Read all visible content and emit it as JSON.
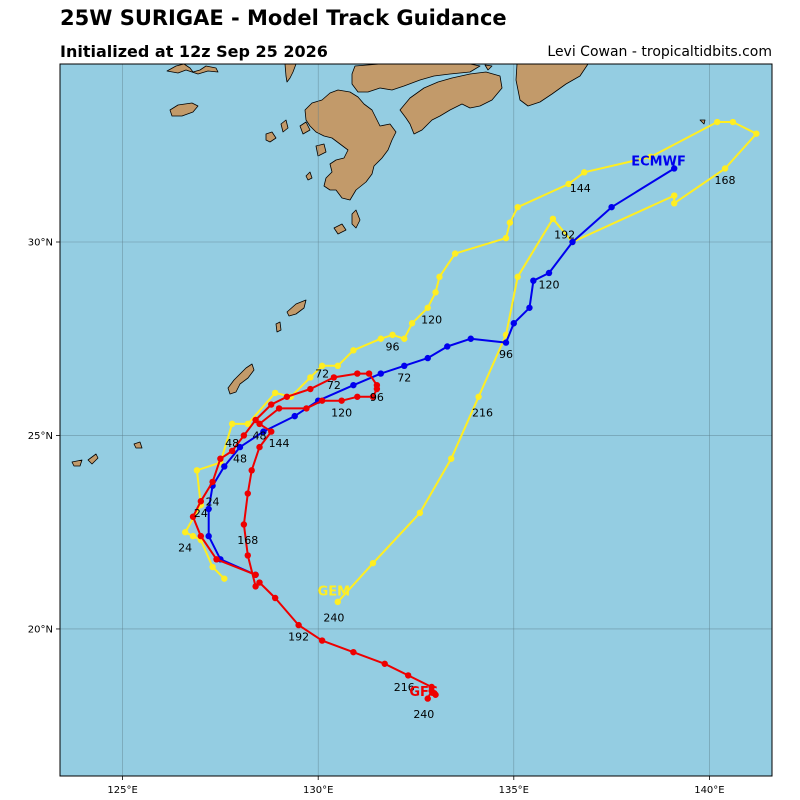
{
  "header": {
    "title": "25W SURIGAE - Model Track Guidance",
    "subtitle": "Initialized at 12z Sep 25 2026",
    "credit": "Levi Cowan - tropicaltidbits.com"
  },
  "colors": {
    "ocean": "#94cde2",
    "land": "#c29a6a",
    "grid": "#5d7f8c",
    "ecmwf": "#0000ee",
    "gfs": "#ee0000",
    "gem": "#ffee22"
  },
  "axes": {
    "lon_ticks": [
      {
        "value": 125,
        "label": "125°E"
      },
      {
        "value": 130,
        "label": "130°E"
      },
      {
        "value": 135,
        "label": "135°E"
      },
      {
        "value": 140,
        "label": "140°E"
      }
    ],
    "lat_ticks": [
      {
        "value": 20,
        "label": "20°N"
      },
      {
        "value": 25,
        "label": "25°N"
      },
      {
        "value": 30,
        "label": "30°N"
      }
    ],
    "lon_range": [
      123.4,
      141.6
    ],
    "lat_range": [
      16.2,
      34.6
    ],
    "grid": true
  },
  "chart_data": {
    "type": "map-tracks",
    "series": [
      {
        "name": "GFS",
        "color_key": "gfs",
        "points": [
          [
            132.8,
            18.2
          ],
          [
            132.9,
            18.4
          ],
          [
            133.0,
            18.3
          ],
          [
            132.9,
            18.5
          ],
          [
            132.3,
            18.8
          ],
          [
            131.7,
            19.1
          ],
          [
            130.9,
            19.4
          ],
          [
            130.1,
            19.7
          ],
          [
            129.5,
            20.1
          ],
          [
            128.9,
            20.8
          ],
          [
            128.5,
            21.2
          ],
          [
            128.4,
            21.1
          ],
          [
            128.2,
            21.9
          ],
          [
            128.1,
            22.7
          ],
          [
            128.2,
            23.5
          ],
          [
            128.3,
            24.1
          ],
          [
            128.5,
            24.7
          ],
          [
            128.8,
            25.1
          ],
          [
            128.5,
            25.3
          ],
          [
            129.0,
            25.7
          ],
          [
            129.7,
            25.7
          ],
          [
            130.1,
            25.9
          ],
          [
            130.6,
            25.9
          ],
          [
            131.0,
            26.0
          ],
          [
            131.4,
            26.0
          ],
          [
            131.5,
            26.2
          ],
          [
            131.5,
            26.3
          ],
          [
            131.3,
            26.6
          ],
          [
            131.0,
            26.6
          ],
          [
            130.4,
            26.5
          ],
          [
            129.8,
            26.2
          ],
          [
            129.2,
            26.0
          ],
          [
            128.8,
            25.8
          ],
          [
            128.4,
            25.4
          ],
          [
            128.1,
            25.0
          ],
          [
            127.8,
            24.6
          ],
          [
            127.5,
            24.4
          ],
          [
            127.3,
            23.8
          ],
          [
            127.0,
            23.3
          ],
          [
            126.8,
            22.9
          ],
          [
            127.0,
            22.4
          ],
          [
            127.4,
            21.8
          ],
          [
            128.4,
            21.4
          ]
        ],
        "labels": [
          {
            "text": "240",
            "lon": 132.7,
            "lat": 17.8
          },
          {
            "text": "216",
            "lon": 132.2,
            "lat": 18.5
          },
          {
            "text": "192",
            "lon": 129.5,
            "lat": 19.8
          },
          {
            "text": "168",
            "lon": 128.2,
            "lat": 22.3
          },
          {
            "text": "144",
            "lon": 129.0,
            "lat": 24.8
          },
          {
            "text": "120",
            "lon": 130.6,
            "lat": 25.6
          },
          {
            "text": "96",
            "lon": 131.5,
            "lat": 26.0
          },
          {
            "text": "72",
            "lon": 130.4,
            "lat": 26.3
          },
          {
            "text": "48",
            "lon": 128.5,
            "lat": 25.0
          },
          {
            "text": "24",
            "lon": 127.0,
            "lat": 23.0
          }
        ],
        "name_pos": {
          "lon": 132.7,
          "lat": 18.4
        }
      },
      {
        "name": "ECMWF",
        "color_key": "ecmwf",
        "points": [
          [
            128.4,
            21.4
          ],
          [
            127.5,
            21.8
          ],
          [
            127.2,
            22.4
          ],
          [
            127.2,
            23.1
          ],
          [
            127.3,
            23.7
          ],
          [
            127.6,
            24.2
          ],
          [
            128.0,
            24.7
          ],
          [
            128.6,
            25.1
          ],
          [
            129.4,
            25.5
          ],
          [
            130.0,
            25.9
          ],
          [
            130.9,
            26.3
          ],
          [
            131.6,
            26.6
          ],
          [
            132.2,
            26.8
          ],
          [
            132.8,
            27.0
          ],
          [
            133.3,
            27.3
          ],
          [
            133.9,
            27.5
          ],
          [
            134.8,
            27.4
          ],
          [
            135.0,
            27.9
          ],
          [
            135.4,
            28.3
          ],
          [
            135.5,
            29.0
          ],
          [
            135.9,
            29.2
          ],
          [
            136.5,
            30.0
          ],
          [
            137.5,
            30.9
          ],
          [
            139.1,
            31.9
          ]
        ],
        "labels": [
          {
            "text": "24",
            "lon": 127.3,
            "lat": 23.3
          },
          {
            "text": "48",
            "lon": 128.0,
            "lat": 24.4
          },
          {
            "text": "72",
            "lon": 132.2,
            "lat": 26.5
          },
          {
            "text": "96",
            "lon": 134.8,
            "lat": 27.1
          },
          {
            "text": "120",
            "lon": 135.9,
            "lat": 28.9
          }
        ],
        "name_pos": {
          "lon": 138.7,
          "lat": 32.1
        }
      },
      {
        "name": "GEM",
        "color_key": "gem",
        "points": [
          [
            127.6,
            21.3
          ],
          [
            127.3,
            21.6
          ],
          [
            127.0,
            22.3
          ],
          [
            126.8,
            22.4
          ],
          [
            126.6,
            22.5
          ],
          [
            127.0,
            23.2
          ],
          [
            126.9,
            24.1
          ],
          [
            127.5,
            24.3
          ],
          [
            127.8,
            25.3
          ],
          [
            128.2,
            25.3
          ],
          [
            128.9,
            26.1
          ],
          [
            129.3,
            26.0
          ],
          [
            129.8,
            26.5
          ],
          [
            130.1,
            26.8
          ],
          [
            130.5,
            26.8
          ],
          [
            130.9,
            27.2
          ],
          [
            131.6,
            27.5
          ],
          [
            131.9,
            27.6
          ],
          [
            132.2,
            27.5
          ],
          [
            132.4,
            27.9
          ],
          [
            132.8,
            28.3
          ],
          [
            133.0,
            28.7
          ],
          [
            133.1,
            29.1
          ],
          [
            133.5,
            29.7
          ],
          [
            134.8,
            30.1
          ],
          [
            134.9,
            30.5
          ],
          [
            135.1,
            30.9
          ],
          [
            136.4,
            31.5
          ],
          [
            136.8,
            31.8
          ],
          [
            138.5,
            32.2
          ],
          [
            140.2,
            33.1
          ],
          [
            140.6,
            33.1
          ],
          [
            141.2,
            32.8
          ],
          [
            140.4,
            31.9
          ],
          [
            139.1,
            31.0
          ],
          [
            139.1,
            31.2
          ],
          [
            136.5,
            30.0
          ],
          [
            136.0,
            30.6
          ],
          [
            135.1,
            29.1
          ],
          [
            134.8,
            27.6
          ],
          [
            134.1,
            26.0
          ],
          [
            133.4,
            24.4
          ],
          [
            132.6,
            23.0
          ],
          [
            131.4,
            21.7
          ],
          [
            130.5,
            20.7
          ]
        ],
        "labels": [
          {
            "text": "24",
            "lon": 126.6,
            "lat": 22.1
          },
          {
            "text": "48",
            "lon": 127.8,
            "lat": 24.8
          },
          {
            "text": "72",
            "lon": 130.1,
            "lat": 26.6
          },
          {
            "text": "96",
            "lon": 131.9,
            "lat": 27.3
          },
          {
            "text": "120",
            "lon": 132.9,
            "lat": 28.0
          },
          {
            "text": "144",
            "lon": 136.7,
            "lat": 31.4
          },
          {
            "text": "168",
            "lon": 140.4,
            "lat": 31.6
          },
          {
            "text": "192",
            "lon": 136.3,
            "lat": 30.2
          },
          {
            "text": "216",
            "lon": 134.2,
            "lat": 25.6
          },
          {
            "text": "240",
            "lon": 130.4,
            "lat": 20.3
          }
        ],
        "name_pos": {
          "lon": 130.4,
          "lat": 21.0
        }
      }
    ]
  }
}
